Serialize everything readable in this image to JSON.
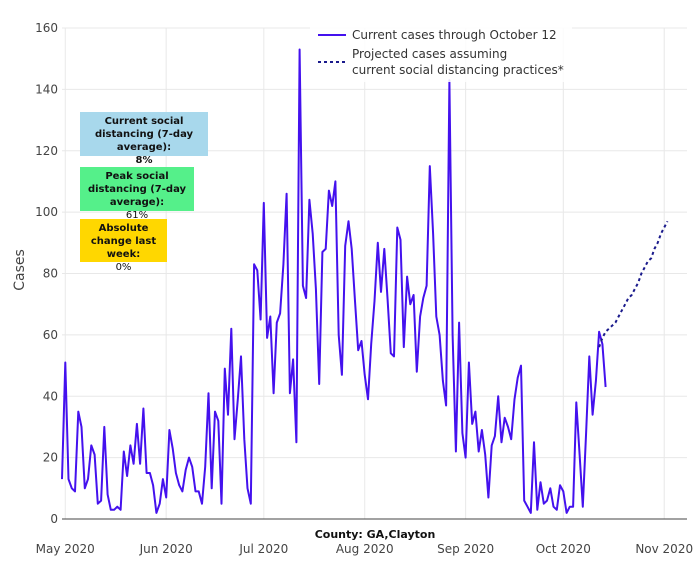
{
  "chart_data": {
    "type": "line",
    "title": "County: GA,Clayton",
    "xlabel": "",
    "ylabel": "Cases",
    "ylim": [
      0,
      160
    ],
    "yticks": [
      0,
      20,
      40,
      60,
      80,
      100,
      120,
      140,
      160
    ],
    "xrange": [
      "2020-04-30",
      "2020-11-08"
    ],
    "xticks": [
      {
        "label": "May 2020",
        "date": "2020-05-01"
      },
      {
        "label": "Jun 2020",
        "date": "2020-06-01"
      },
      {
        "label": "Jul 2020",
        "date": "2020-07-01"
      },
      {
        "label": "Aug 2020",
        "date": "2020-08-01"
      },
      {
        "label": "Sep 2020",
        "date": "2020-09-01"
      },
      {
        "label": "Oct 2020",
        "date": "2020-10-01"
      },
      {
        "label": "Nov 2020",
        "date": "2020-11-01"
      }
    ],
    "grid": true,
    "legend_position": "top-right",
    "series": [
      {
        "name": "Current cases through October 12",
        "style": "solid",
        "color": "#4411ee",
        "start_date": "2020-04-30",
        "values": [
          13,
          51,
          13,
          10,
          9,
          35,
          30,
          10,
          13,
          24,
          21,
          5,
          6,
          30,
          8,
          3,
          3,
          4,
          3,
          22,
          14,
          24,
          18,
          31,
          18,
          36,
          15,
          15,
          11,
          2,
          5,
          13,
          7,
          29,
          23,
          15,
          11,
          9,
          16,
          20,
          17,
          9,
          9,
          5,
          17,
          41,
          10,
          35,
          32,
          5,
          49,
          34,
          62,
          26,
          39,
          53,
          26,
          10,
          5,
          83,
          81,
          65,
          103,
          59,
          66,
          41,
          64,
          67,
          83,
          106,
          41,
          52,
          25,
          153,
          76,
          72,
          104,
          93,
          75,
          44,
          87,
          88,
          107,
          102,
          110,
          60,
          47,
          89,
          97,
          88,
          71,
          55,
          58,
          47,
          39,
          57,
          71,
          90,
          74,
          88,
          72,
          54,
          53,
          95,
          91,
          56,
          79,
          70,
          73,
          48,
          66,
          72,
          76,
          115,
          93,
          66,
          60,
          45,
          37,
          143,
          60,
          22,
          64,
          28,
          20,
          51,
          31,
          35,
          22,
          29,
          21,
          7,
          24,
          27,
          40,
          25,
          33,
          30,
          26,
          39,
          46,
          50,
          6,
          4,
          2,
          25,
          3,
          12,
          5,
          6,
          10,
          4,
          3,
          11,
          9,
          2,
          4,
          4,
          38,
          21,
          4,
          28,
          53,
          34,
          45,
          61,
          57,
          43
        ]
      },
      {
        "name": "Projected cases assuming current social distancing practices*",
        "style": "dashed",
        "color": "#1a1a8c",
        "start_date": "2020-10-12",
        "values": [
          56,
          59,
          61,
          62,
          63,
          64,
          66,
          68,
          70,
          72,
          73,
          75,
          77,
          80,
          82,
          84,
          85,
          88,
          90,
          93,
          95,
          97
        ]
      }
    ],
    "annotations": [
      {
        "text": "County: GA,Clayton",
        "position": "bottom-center"
      }
    ]
  },
  "info_boxes": {
    "current": {
      "heading": "Current social distancing (7-day average):",
      "value": "8%",
      "bg": "#a8d8ec"
    },
    "peak": {
      "heading": "Peak social distancing (7-day average):",
      "value": "61%",
      "bg": "#55f08a"
    },
    "change": {
      "heading": "Absolute change last week:",
      "value": "0%",
      "bg": "#ffd700"
    }
  },
  "legend": {
    "current_label": "Current cases through October 12",
    "projected_label_line1": "Projected cases assuming",
    "projected_label_line2": "current social distancing practices*"
  }
}
